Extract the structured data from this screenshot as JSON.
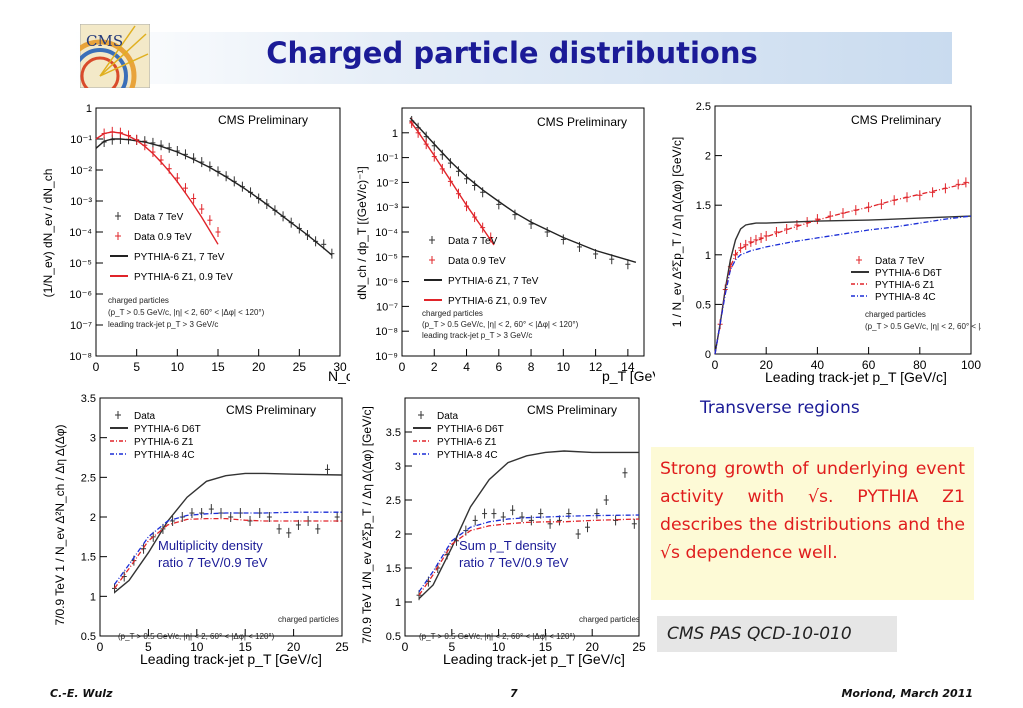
{
  "slide": {
    "title": "Charged particle distributions",
    "caption": "Transverse regions",
    "summary": "Strong growth of underlying event activity with √s. PYTHIA Z1 describes the distributions and the √s dependence well.",
    "reference": "CMS PAS QCD-10-010",
    "footer_left": "C.-E. Wulz",
    "footer_center": "7",
    "footer_right": "Moriond, March 2011",
    "logo_text": "CMS"
  },
  "colors": {
    "title": "#1b1b97",
    "summary_text": "#e01d1d",
    "summary_bg": "#fdfad6",
    "data_7tev": "#333333",
    "data_09tev": "#e0242a",
    "pythia_z1_7": "#222222",
    "pythia_z1_09": "#e0242a",
    "d6t": "#333333",
    "z1_ratio": "#e0242a",
    "pythia8_4c": "#1a2dd6"
  },
  "chart_data": [
    {
      "type": "line",
      "log_y": true,
      "watermark": "CMS Preliminary",
      "xlabel": "N_ch",
      "ylabel": "(1/N_ev) dN_ev / dN_ch",
      "xlim": [
        0,
        30
      ],
      "ylim": [
        1e-08,
        1
      ],
      "xticks": [
        0,
        5,
        10,
        15,
        20,
        25,
        30
      ],
      "yticks": [
        1,
        0.1,
        0.01,
        0.001,
        0.0001,
        1e-05,
        1e-06,
        1e-07,
        1e-08
      ],
      "ytick_labels": [
        "1",
        "10⁻¹",
        "10⁻²",
        "10⁻³",
        "10⁻⁴",
        "10⁻⁵",
        "10⁻⁶",
        "10⁻⁷",
        "10⁻⁸"
      ],
      "legend": [
        "Data 7 TeV",
        "Data 0.9 TeV",
        "PYTHIA-6 Z1, 7 TeV",
        "PYTHIA-6 Z1, 0.9 TeV"
      ],
      "notes": [
        "charged particles",
        "(p_T > 0.5 GeV/c, |η| < 2, 60° < |Δφ| < 120°)",
        "leading track-jet p_T > 3 GeV/c"
      ],
      "series": [
        {
          "name": "Data 7 TeV",
          "style": "points",
          "color": "#333333",
          "x": [
            1,
            2,
            3,
            4,
            5,
            6,
            7,
            8,
            9,
            10,
            11,
            12,
            13,
            14,
            15,
            16,
            17,
            18,
            19,
            20,
            21,
            22,
            23,
            24,
            25,
            26,
            27,
            28,
            29
          ],
          "y": [
            0.08,
            0.095,
            0.1,
            0.098,
            0.093,
            0.085,
            0.075,
            0.063,
            0.052,
            0.041,
            0.032,
            0.024,
            0.018,
            0.013,
            0.009,
            0.0063,
            0.0043,
            0.0029,
            0.0019,
            0.0012,
            0.0008,
            0.0005,
            0.00032,
            0.0002,
            0.00013,
            8e-05,
            5e-05,
            4e-05,
            2e-05
          ]
        },
        {
          "name": "Data 0.9 TeV",
          "style": "points",
          "color": "#e0242a",
          "x": [
            1,
            2,
            3,
            4,
            5,
            6,
            7,
            8,
            9,
            10,
            11,
            12,
            13,
            14,
            15
          ],
          "y": [
            0.15,
            0.17,
            0.16,
            0.13,
            0.095,
            0.063,
            0.038,
            0.021,
            0.011,
            0.0055,
            0.0026,
            0.0012,
            0.00055,
            0.00024,
            0.0001
          ]
        },
        {
          "name": "PYTHIA-6 Z1, 7 TeV",
          "style": "line",
          "color": "#222222",
          "x": [
            0,
            1,
            2,
            3,
            4,
            6,
            8,
            10,
            12,
            14,
            16,
            18,
            20,
            22,
            24,
            26,
            28,
            29
          ],
          "y": [
            0.05,
            0.085,
            0.1,
            0.1,
            0.095,
            0.08,
            0.058,
            0.038,
            0.022,
            0.012,
            0.006,
            0.0028,
            0.0012,
            0.0005,
            0.0002,
            8e-05,
            3e-05,
            1.8e-05
          ]
        },
        {
          "name": "PYTHIA-6 Z1, 0.9 TeV",
          "style": "line",
          "color": "#e0242a",
          "x": [
            0,
            1,
            2,
            3,
            4,
            5,
            6,
            7,
            8,
            9,
            10,
            11,
            12,
            13,
            14,
            15
          ],
          "y": [
            0.1,
            0.15,
            0.17,
            0.155,
            0.125,
            0.09,
            0.058,
            0.034,
            0.018,
            0.009,
            0.0042,
            0.0018,
            0.00075,
            0.0003,
            0.00011,
            4e-05
          ]
        }
      ]
    },
    {
      "type": "line",
      "log_y": true,
      "watermark": "CMS Preliminary",
      "xlabel": "p_T [GeV/c]",
      "ylabel": "dN_ch / dp_T [(GeV/c)⁻¹]",
      "xlim": [
        0,
        15
      ],
      "ylim": [
        1e-09,
        10
      ],
      "xticks": [
        0,
        2,
        4,
        6,
        8,
        10,
        12,
        14
      ],
      "yticks": [
        1,
        0.1,
        0.01,
        0.001,
        0.0001,
        1e-05,
        1e-06,
        1e-07,
        1e-08,
        1e-09
      ],
      "ytick_labels": [
        "1",
        "10⁻¹",
        "10⁻²",
        "10⁻³",
        "10⁻⁴",
        "10⁻⁵",
        "10⁻⁶",
        "10⁻⁷",
        "10⁻⁸",
        "10⁻⁹"
      ],
      "legend": [
        "Data 7 TeV",
        "Data 0.9 TeV",
        "PYTHIA-6 Z1, 7 TeV",
        "PYTHIA-6 Z1, 0.9 TeV"
      ],
      "notes": [
        "charged particles",
        "(p_T > 0.5 GeV/c, |η| < 2, 60° < |Δφ| < 120°)",
        "leading track-jet p_T > 3 GeV/c"
      ],
      "series": [
        {
          "name": "Data 7 TeV",
          "style": "points",
          "color": "#333333",
          "x": [
            0.6,
            1,
            1.5,
            2,
            2.5,
            3,
            3.5,
            4,
            4.5,
            5,
            6,
            7,
            8,
            9,
            10,
            11,
            12,
            13,
            14
          ],
          "y": [
            3,
            1.6,
            0.7,
            0.3,
            0.13,
            0.06,
            0.028,
            0.014,
            0.0075,
            0.004,
            0.0013,
            0.0005,
            0.00021,
            0.0001,
            5e-05,
            2.5e-05,
            1.3e-05,
            8e-06,
            5e-06
          ]
        },
        {
          "name": "Data 0.9 TeV",
          "style": "points",
          "color": "#e0242a",
          "x": [
            0.6,
            1,
            1.5,
            2,
            2.5,
            3,
            3.5,
            4,
            4.5,
            5,
            5.5
          ],
          "y": [
            2.5,
            1.0,
            0.35,
            0.11,
            0.035,
            0.011,
            0.0035,
            0.0011,
            0.0004,
            0.00015,
            6e-05
          ]
        },
        {
          "name": "PYTHIA-6 Z1, 7 TeV",
          "style": "line",
          "color": "#222222",
          "x": [
            0.5,
            1,
            2,
            3,
            4,
            5,
            6,
            7,
            8,
            10,
            12,
            14.5
          ],
          "y": [
            4,
            1.8,
            0.35,
            0.07,
            0.017,
            0.005,
            0.0017,
            0.0006,
            0.00025,
            6e-05,
            1.8e-05,
            6e-06
          ]
        },
        {
          "name": "PYTHIA-6 Z1, 0.9 TeV",
          "style": "line",
          "color": "#e0242a",
          "x": [
            0.5,
            1,
            2,
            3,
            4,
            5,
            5.7
          ],
          "y": [
            3,
            1.1,
            0.12,
            0.012,
            0.0012,
            0.00014,
            3e-05
          ]
        }
      ]
    },
    {
      "type": "line",
      "watermark": "CMS Preliminary",
      "xlabel": "Leading track-jet p_T [GeV/c]",
      "ylabel": "1 / N_ev Δ²Σp_T / Δη Δ(Δφ) [GeV/c]",
      "xlim": [
        0,
        100
      ],
      "ylim": [
        0,
        2.5
      ],
      "xticks": [
        0,
        20,
        40,
        60,
        80,
        100
      ],
      "yticks": [
        0,
        0.5,
        1,
        1.5,
        2,
        2.5
      ],
      "legend": [
        "Data 7 TeV",
        "PYTHIA-6 D6T",
        "PYTHIA-6 Z1",
        "PYTHIA-8 4C"
      ],
      "notes": [
        "charged particles",
        "(p_T > 0.5 GeV/c, |η| < 2, 60° < |Δφ| < 120°)"
      ],
      "series": [
        {
          "name": "Data 7 TeV",
          "style": "points",
          "color": "#e0242a",
          "x": [
            2,
            4,
            6,
            8,
            10,
            12,
            14,
            16,
            18,
            20,
            24,
            28,
            32,
            36,
            40,
            45,
            50,
            55,
            60,
            65,
            70,
            75,
            80,
            85,
            90,
            95,
            98
          ],
          "y": [
            0.3,
            0.65,
            0.88,
            1.0,
            1.07,
            1.1,
            1.13,
            1.15,
            1.17,
            1.19,
            1.23,
            1.26,
            1.3,
            1.33,
            1.36,
            1.39,
            1.42,
            1.45,
            1.48,
            1.51,
            1.55,
            1.58,
            1.6,
            1.63,
            1.67,
            1.71,
            1.73
          ]
        },
        {
          "name": "PYTHIA-6 D6T",
          "style": "line",
          "color": "#333333",
          "x": [
            0,
            2,
            4,
            6,
            8,
            10,
            12,
            14,
            16,
            20,
            40,
            60,
            80,
            100
          ],
          "y": [
            0,
            0.3,
            0.65,
            0.95,
            1.15,
            1.26,
            1.3,
            1.31,
            1.32,
            1.32,
            1.34,
            1.35,
            1.37,
            1.39
          ]
        },
        {
          "name": "PYTHIA-6 Z1",
          "style": "dashdot",
          "color": "#e0242a",
          "x": [
            0,
            2,
            4,
            6,
            8,
            10,
            14,
            20,
            30,
            40,
            50,
            60,
            70,
            80,
            90,
            100
          ],
          "y": [
            0,
            0.3,
            0.62,
            0.88,
            1.0,
            1.06,
            1.12,
            1.18,
            1.27,
            1.35,
            1.42,
            1.48,
            1.55,
            1.61,
            1.67,
            1.73
          ]
        },
        {
          "name": "PYTHIA-8 4C",
          "style": "dashdot",
          "color": "#1a2dd6",
          "x": [
            0,
            2,
            4,
            6,
            8,
            10,
            14,
            20,
            30,
            40,
            50,
            60,
            70,
            80,
            90,
            100
          ],
          "y": [
            0,
            0.3,
            0.6,
            0.85,
            0.95,
            1.0,
            1.04,
            1.08,
            1.13,
            1.17,
            1.21,
            1.25,
            1.28,
            1.32,
            1.36,
            1.39
          ]
        }
      ]
    },
    {
      "type": "line",
      "watermark": "CMS Preliminary",
      "xlabel": "Leading track-jet p_T [GeV/c]",
      "ylabel": "7/0.9 TeV 1 / N_ev Δ²N_ch / Δη Δ(Δφ)",
      "xlim": [
        0,
        25
      ],
      "ylim": [
        0.5,
        3.5
      ],
      "xticks": [
        0,
        5,
        10,
        15,
        20,
        25
      ],
      "yticks": [
        0.5,
        1,
        1.5,
        2,
        2.5,
        3,
        3.5
      ],
      "legend": [
        "Data",
        "PYTHIA-6 D6T",
        "PYTHIA-6 Z1",
        "PYTHIA-8 4C"
      ],
      "notes": [
        "Multiplicity density",
        "ratio 7 TeV/0.9 TeV",
        "charged particles",
        "(p_T > 0.5 GeV/c, |η| < 2, 60° < |Δφ| < 120°)"
      ],
      "series": [
        {
          "name": "Data",
          "style": "points",
          "color": "#333333",
          "x": [
            1.5,
            2.5,
            3.5,
            4.5,
            5.5,
            6.5,
            7.5,
            8.5,
            9.5,
            10.5,
            11.5,
            12.5,
            13.5,
            14.5,
            15.5,
            16.5,
            17.5,
            18.5,
            19.5,
            20.5,
            21.5,
            22.5,
            23.5,
            24.5
          ],
          "y": [
            1.1,
            1.25,
            1.45,
            1.6,
            1.75,
            1.85,
            1.95,
            2.0,
            2.05,
            2.05,
            2.1,
            2.05,
            2.0,
            2.05,
            1.95,
            2.05,
            2.0,
            1.85,
            1.8,
            1.9,
            1.95,
            1.85,
            2.6,
            2.0
          ]
        },
        {
          "name": "PYTHIA-6 D6T",
          "style": "line",
          "color": "#333333",
          "x": [
            1.5,
            3,
            5,
            7,
            9,
            11,
            13,
            15,
            17,
            20,
            25
          ],
          "y": [
            1.05,
            1.2,
            1.55,
            1.95,
            2.25,
            2.45,
            2.52,
            2.55,
            2.55,
            2.54,
            2.53
          ]
        },
        {
          "name": "PYTHIA-6 Z1",
          "style": "dashdot",
          "color": "#e0242a",
          "x": [
            1.5,
            3,
            5,
            7,
            9,
            11,
            13,
            15,
            17,
            20,
            25
          ],
          "y": [
            1.1,
            1.35,
            1.7,
            1.9,
            1.97,
            1.98,
            1.98,
            1.96,
            1.95,
            1.95,
            1.95
          ]
        },
        {
          "name": "PYTHIA-8 4C",
          "style": "dashdot",
          "color": "#1a2dd6",
          "x": [
            1.5,
            3,
            5,
            7,
            9,
            11,
            13,
            15,
            17,
            20,
            25
          ],
          "y": [
            1.15,
            1.4,
            1.75,
            1.95,
            2.02,
            2.04,
            2.05,
            2.05,
            2.05,
            2.06,
            2.06
          ]
        }
      ]
    },
    {
      "type": "line",
      "watermark": "CMS Preliminary",
      "xlabel": "Leading track-jet p_T [GeV/c]",
      "ylabel": "7/0.9 TeV 1/N_ev Δ²Σp_T / Δη Δ(Δφ) [GeV/c]",
      "xlim": [
        0,
        25
      ],
      "ylim": [
        0.5,
        4
      ],
      "xticks": [
        0,
        5,
        10,
        15,
        20,
        25
      ],
      "yticks": [
        0.5,
        1,
        1.5,
        2,
        2.5,
        3,
        3.5
      ],
      "legend": [
        "Data",
        "PYTHIA-6 D6T",
        "PYTHIA-6 Z1",
        "PYTHIA-8 4C"
      ],
      "notes": [
        "Sum p_T density",
        "ratio 7 TeV/0.9 TeV",
        "charged particles",
        "(p_T > 0.5 GeV/c, |η| < 2, 60° < |Δφ| < 120°)"
      ],
      "series": [
        {
          "name": "Data",
          "style": "points",
          "color": "#333333",
          "x": [
            1.5,
            2.5,
            3.5,
            4.5,
            5.5,
            6.5,
            7.5,
            8.5,
            9.5,
            10.5,
            11.5,
            12.5,
            13.5,
            14.5,
            15.5,
            16.5,
            17.5,
            18.5,
            19.5,
            20.5,
            21.5,
            22.5,
            23.5,
            24.5
          ],
          "y": [
            1.1,
            1.3,
            1.5,
            1.7,
            1.9,
            2.05,
            2.2,
            2.3,
            2.3,
            2.25,
            2.35,
            2.25,
            2.2,
            2.3,
            2.15,
            2.2,
            2.3,
            2.0,
            2.1,
            2.3,
            2.5,
            2.2,
            2.9,
            2.15
          ]
        },
        {
          "name": "PYTHIA-6 D6T",
          "style": "line",
          "color": "#333333",
          "x": [
            1.5,
            3,
            5,
            7,
            9,
            11,
            13,
            15,
            17,
            20,
            25
          ],
          "y": [
            1.05,
            1.25,
            1.8,
            2.4,
            2.8,
            3.05,
            3.15,
            3.2,
            3.22,
            3.2,
            3.2
          ]
        },
        {
          "name": "PYTHIA-6 Z1",
          "style": "dashdot",
          "color": "#e0242a",
          "x": [
            1.5,
            3,
            5,
            7,
            9,
            11,
            13,
            15,
            17,
            20,
            25
          ],
          "y": [
            1.1,
            1.4,
            1.85,
            2.05,
            2.12,
            2.15,
            2.17,
            2.18,
            2.18,
            2.2,
            2.22
          ]
        },
        {
          "name": "PYTHIA-8 4C",
          "style": "dashdot",
          "color": "#1a2dd6",
          "x": [
            1.5,
            3,
            5,
            7,
            9,
            11,
            13,
            15,
            17,
            20,
            25
          ],
          "y": [
            1.15,
            1.45,
            1.9,
            2.1,
            2.18,
            2.22,
            2.24,
            2.25,
            2.26,
            2.27,
            2.28
          ]
        }
      ]
    }
  ]
}
